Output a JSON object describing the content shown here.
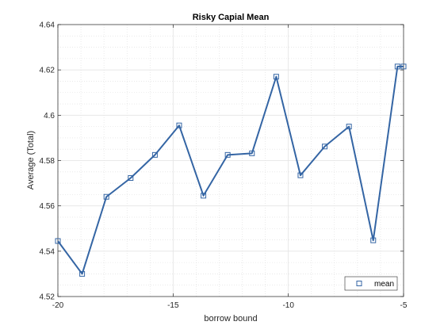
{
  "chart_data": {
    "type": "line",
    "title": "Risky Capial Mean",
    "xlabel": "borrow bound",
    "ylabel": "Average (Total)",
    "xlim": [
      -20,
      -5
    ],
    "ylim": [
      4.52,
      4.64
    ],
    "xticks": [
      -20,
      -15,
      -10,
      -5
    ],
    "yticks": [
      4.52,
      4.54,
      4.56,
      4.58,
      4.6,
      4.62,
      4.64
    ],
    "xtick_labels": [
      "-20",
      "-15",
      "-10",
      "-5"
    ],
    "ytick_labels": [
      "4.52",
      "4.54",
      "4.56",
      "4.58",
      "4.6",
      "4.62",
      "4.64"
    ],
    "grid": true,
    "minor_grid": true,
    "legend_position": "bottom-right",
    "series": [
      {
        "name": "mean",
        "color": "#3465a4",
        "marker": "square",
        "x": [
          -20,
          -18.947,
          -17.895,
          -16.842,
          -15.789,
          -14.737,
          -13.684,
          -12.632,
          -11.579,
          -10.526,
          -9.474,
          -8.421,
          -7.368,
          -6.316,
          -5.263,
          -5
        ],
        "y": [
          4.5445,
          4.53,
          4.564,
          4.5723,
          4.5825,
          4.5955,
          4.5645,
          4.5825,
          4.5832,
          4.617,
          4.5735,
          4.5862,
          4.595,
          4.5448,
          4.6215,
          4.6215
        ]
      }
    ]
  }
}
